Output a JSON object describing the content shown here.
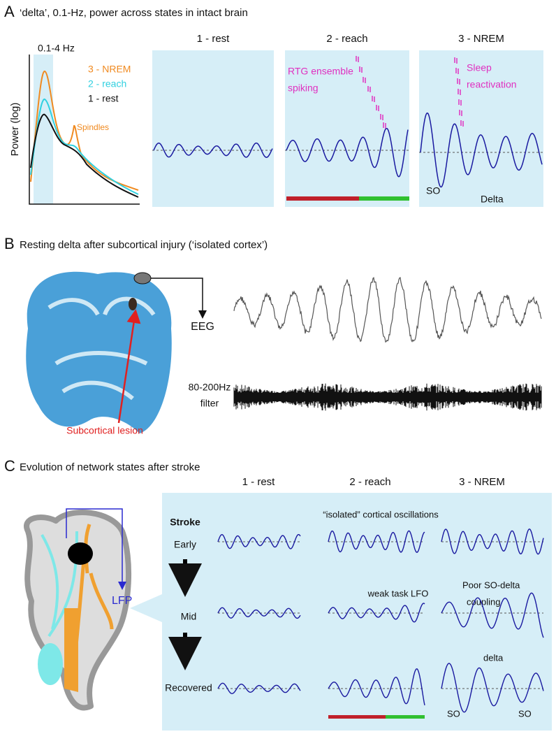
{
  "panel_a": {
    "letter": "A",
    "title": "‘delta’, 0.1-Hz, power across states in intact brain",
    "spectrum": {
      "band_label": "0.1-4 Hz",
      "y_axis_label": "Power (log)",
      "legend": [
        "3 - NREM",
        "2 - reach",
        "1 - rest"
      ],
      "spindles_label": "Spindles"
    },
    "columns": [
      "1 - rest",
      "2 - reach",
      "3 - NREM"
    ],
    "reach_note": [
      "RTG ensemble",
      "spiking"
    ],
    "nrem_note": [
      "Sleep",
      "reactivation"
    ],
    "so_label": "SO",
    "delta_label": "Delta"
  },
  "panel_b": {
    "letter": "B",
    "title": "Resting delta after subcortical injury (‘isolated cortex’)",
    "eeg_label": "EEG",
    "filter_label": [
      "80-200Hz",
      "filter"
    ],
    "lesion_label": "Subcortical lesion"
  },
  "panel_c": {
    "letter": "C",
    "title": "Evolution of network states after stroke",
    "columns": [
      "1 - rest",
      "2 - reach",
      "3 - NREM"
    ],
    "stroke_label": "Stroke",
    "rows": [
      "Early",
      "Mid",
      "Recovered"
    ],
    "lfp_label": "LFP",
    "isolated_note": "“isolated” cortical oscillations",
    "weak_note": "weak task LFO",
    "poor_note": [
      "Poor SO-delta",
      "coupling"
    ],
    "delta_label": "delta",
    "so_labels": [
      "SO",
      "SO"
    ]
  }
}
